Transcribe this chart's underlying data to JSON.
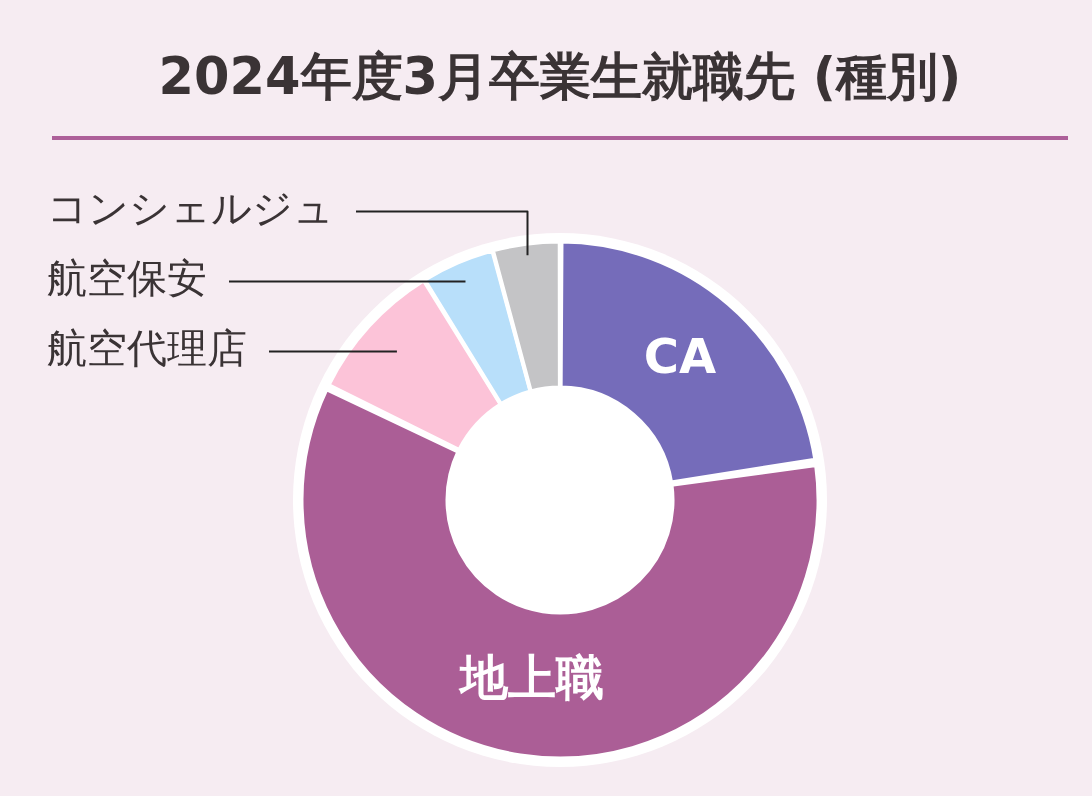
{
  "chart_data": {
    "type": "donut",
    "title": "2024年度3月卒業生就職先 (種別)",
    "categories": [
      "CA",
      "地上職",
      "航空代理店",
      "航空保安",
      "コンシェルジュ"
    ],
    "values": [
      22.6,
      59.7,
      8.9,
      4.6,
      4.2
    ],
    "colors": [
      "#756cba",
      "#ab5e96",
      "#fcc3d8",
      "#b8dffa",
      "#c4c4c6"
    ],
    "legend": false
  }
}
